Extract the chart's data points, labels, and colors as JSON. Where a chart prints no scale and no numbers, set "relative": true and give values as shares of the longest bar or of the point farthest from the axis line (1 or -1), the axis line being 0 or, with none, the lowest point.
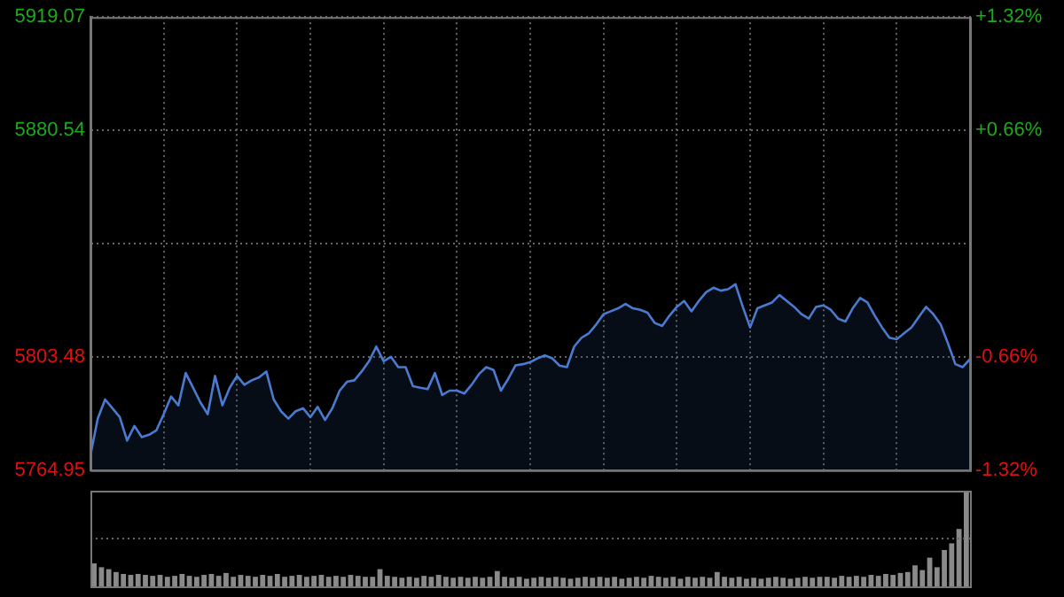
{
  "chart_data": [
    {
      "type": "area",
      "categories": [
        null,
        null,
        null,
        null,
        null,
        null,
        null,
        null,
        null,
        null,
        null,
        null,
        null,
        null,
        null,
        null,
        null,
        null,
        null,
        null,
        null,
        null,
        null,
        null,
        null,
        null,
        null,
        null,
        null,
        null,
        null,
        null,
        null,
        null,
        null,
        null,
        null,
        null,
        null,
        null,
        null,
        null,
        null,
        null,
        null,
        null,
        null,
        null,
        null,
        null,
        null,
        null,
        null,
        null,
        null,
        null,
        null,
        null,
        null,
        null,
        null,
        null,
        null,
        null,
        null,
        null,
        null,
        null,
        null,
        null,
        null,
        null,
        null,
        null,
        null,
        null,
        null,
        null,
        null,
        null,
        null,
        null,
        null,
        null,
        null,
        null,
        null,
        null,
        null,
        null,
        null,
        null,
        null,
        null,
        null,
        null,
        null,
        null,
        null,
        null,
        null,
        null,
        null,
        null,
        null,
        null,
        null,
        null,
        null,
        null,
        null,
        null,
        null,
        null,
        null,
        null,
        null,
        null,
        null,
        null,
        null
      ],
      "series": [
        {
          "color": "#4a7bd0",
          "values": [
            5770.0,
            5782.5,
            5789,
            5786,
            5783,
            5775,
            5780,
            5776.2,
            5777,
            5778.5,
            5784,
            5790,
            5787,
            5798,
            5793,
            5788,
            5784,
            5797,
            5787,
            5793,
            5797,
            5794,
            5795.5,
            5796.5,
            5798.5,
            5789,
            5785,
            5782.5,
            5785,
            5786,
            5783,
            5786.5,
            5782,
            5786,
            5792,
            5795,
            5795.5,
            5798.5,
            5802,
            5807,
            5802,
            5803.5,
            5800,
            5800,
            5793.5,
            5793,
            5792.5,
            5798,
            5790.5,
            5792,
            5792,
            5791,
            5794,
            5797.6,
            5800,
            5799,
            5792,
            5796,
            5800.6,
            5801,
            5801.7,
            5803,
            5804,
            5803,
            5800.5,
            5800,
            5807,
            5810,
            5811.5,
            5814.5,
            5818,
            5819,
            5820,
            5821.5,
            5820,
            5819.5,
            5818.5,
            5815,
            5814,
            5817.5,
            5820.5,
            5822.5,
            5819,
            5822.5,
            5825.5,
            5827,
            5826,
            5826.5,
            5828.2,
            5820.5,
            5813.5,
            5820,
            5821,
            5822,
            5824.5,
            5822.5,
            5820.5,
            5818,
            5816.5,
            5820.5,
            5821,
            5819.5,
            5816.5,
            5815.5,
            5820,
            5823.5,
            5822,
            5817.5,
            5813.5,
            5810,
            5809.5,
            5811.5,
            5813.5,
            5817,
            5820.5,
            5818,
            5814.5,
            5808,
            5801,
            5800,
            5802.7
          ]
        }
      ],
      "ylim": [
        5764.95,
        5919.07
      ],
      "yticks": [
        5764.95,
        5803.48,
        {
          "value": 5842.01,
          "label": null
        },
        5880.54,
        5919.07
      ],
      "y2lim": [
        -1.32,
        1.32
      ],
      "y2ticks": [
        {
          "value": -1.32,
          "label": "-1.32%"
        },
        {
          "value": -0.66,
          "label": "-0.66%"
        },
        {
          "value": 0,
          "label": null
        },
        {
          "value": 0.66,
          "label": "+0.66%"
        },
        {
          "value": 1.32,
          "label": "+1.32%"
        }
      ],
      "tick_labels": "y",
      "grid": true,
      "legend": false,
      "marker": "none",
      "line_style": "solid"
    },
    {
      "type": "bar",
      "relative": true,
      "color": "#8a8a8a",
      "legend": false,
      "tick_labels": false,
      "ref_lines": [
        {
          "axis": "y",
          "value": 0.5,
          "color": "#666666",
          "line_style": "dotted"
        }
      ],
      "categories": [
        null,
        null,
        null,
        null,
        null,
        null,
        null,
        null,
        null,
        null,
        null,
        null,
        null,
        null,
        null,
        null,
        null,
        null,
        null,
        null,
        null,
        null,
        null,
        null,
        null,
        null,
        null,
        null,
        null,
        null,
        null,
        null,
        null,
        null,
        null,
        null,
        null,
        null,
        null,
        null,
        null,
        null,
        null,
        null,
        null,
        null,
        null,
        null,
        null,
        null,
        null,
        null,
        null,
        null,
        null,
        null,
        null,
        null,
        null,
        null,
        null,
        null,
        null,
        null,
        null,
        null,
        null,
        null,
        null,
        null,
        null,
        null,
        null,
        null,
        null,
        null,
        null,
        null,
        null,
        null,
        null,
        null,
        null,
        null,
        null,
        null,
        null,
        null,
        null,
        null,
        null,
        null,
        null,
        null,
        null,
        null,
        null,
        null,
        null,
        null,
        null,
        null,
        null,
        null,
        null,
        null,
        null,
        null,
        null,
        null,
        null,
        null,
        null,
        null,
        null,
        null,
        null,
        null,
        null,
        null
      ],
      "values": [
        0.24,
        0.2,
        0.18,
        0.15,
        0.13,
        0.12,
        0.13,
        0.12,
        0.11,
        0.12,
        0.1,
        0.11,
        0.13,
        0.11,
        0.1,
        0.12,
        0.13,
        0.11,
        0.14,
        0.1,
        0.12,
        0.11,
        0.1,
        0.12,
        0.11,
        0.13,
        0.1,
        0.11,
        0.12,
        0.1,
        0.11,
        0.12,
        0.1,
        0.11,
        0.1,
        0.12,
        0.11,
        0.1,
        0.1,
        0.18,
        0.11,
        0.1,
        0.09,
        0.1,
        0.09,
        0.11,
        0.1,
        0.12,
        0.1,
        0.09,
        0.1,
        0.09,
        0.1,
        0.09,
        0.1,
        0.16,
        0.1,
        0.09,
        0.1,
        0.08,
        0.09,
        0.1,
        0.09,
        0.1,
        0.09,
        0.08,
        0.09,
        0.1,
        0.09,
        0.1,
        0.09,
        0.1,
        0.08,
        0.09,
        0.1,
        0.09,
        0.11,
        0.1,
        0.09,
        0.1,
        0.08,
        0.1,
        0.09,
        0.1,
        0.09,
        0.15,
        0.1,
        0.09,
        0.1,
        0.08,
        0.09,
        0.08,
        0.09,
        0.1,
        0.09,
        0.08,
        0.09,
        0.1,
        0.09,
        0.1,
        0.1,
        0.09,
        0.11,
        0.1,
        0.11,
        0.1,
        0.12,
        0.11,
        0.13,
        0.12,
        0.14,
        0.15,
        0.22,
        0.17,
        0.3,
        0.2,
        0.38,
        0.45,
        0.6,
        1
      ]
    }
  ]
}
